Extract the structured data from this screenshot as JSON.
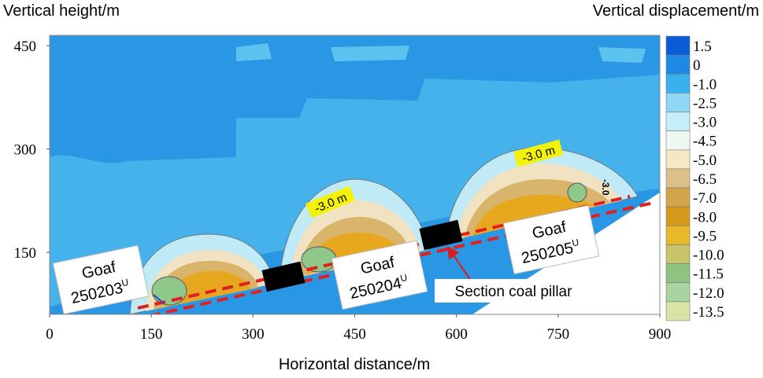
{
  "chart_data": {
    "type": "contour",
    "ylabel": "Vertical height/m",
    "xlabel": "Horizontal distance/m",
    "colorbar_label": "Vertical displacement/m",
    "xlim": [
      0,
      900
    ],
    "xticks": [
      0,
      150,
      300,
      450,
      600,
      750,
      900
    ],
    "ylim": [
      60,
      465
    ],
    "yticks": [
      150,
      300,
      450
    ],
    "colorbar": {
      "ticks": [
        1.5,
        0,
        {
          "value": -1,
          "label": "-1.0"
        },
        -2.5,
        {
          "value": -3,
          "label": "-3.0"
        },
        -4.5,
        {
          "value": -5,
          "label": "-5.0"
        },
        -6.5,
        {
          "value": -7,
          "label": "-7.0"
        },
        {
          "value": -8,
          "label": "-8.0"
        },
        -9.5,
        {
          "value": -10,
          "label": "-10.0"
        },
        -11.5,
        {
          "value": -12,
          "label": "-12.0"
        },
        -13.5
      ],
      "colors": [
        "#0a5bd6",
        "#1e88e5",
        "#3bb0ee",
        "#8fd8f5",
        "#c6eef8",
        "#eef7f2",
        "#f6e6c2",
        "#dcc08a",
        "#d4a44a",
        "#d69a1a",
        "#e8b92a",
        "#c9c46a",
        "#8fc381",
        "#a9d3a0",
        "#d7e4a6"
      ]
    },
    "contour_labels": [
      "-3.0 m",
      "-3.0 m",
      "-3.0"
    ],
    "goafs": [
      {
        "label": "Goaf",
        "id": "250203",
        "superscript": "U"
      },
      {
        "label": "Goaf",
        "id": "250204",
        "superscript": "U"
      },
      {
        "label": "Goaf",
        "id": "250205",
        "superscript": "U"
      }
    ],
    "pillar_label": "Section coal pillar"
  }
}
